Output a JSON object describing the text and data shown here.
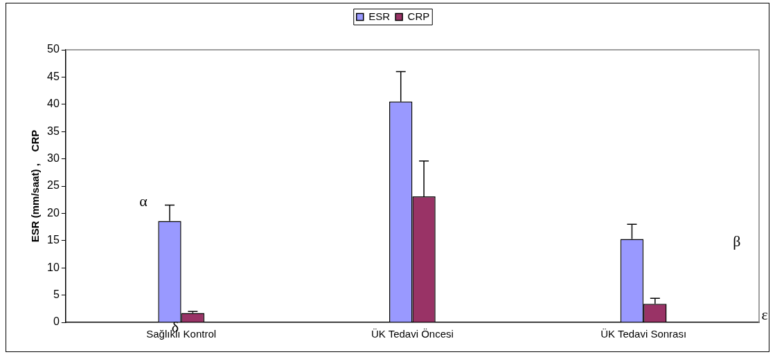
{
  "chart_data": {
    "type": "bar",
    "ylabel": "ESR (mm/saat) ,    CRP",
    "categories": [
      "Sağlıklı Kontrol",
      "ÜK Tedavi Öncesi",
      "ÜK Tedavi Sonrası"
    ],
    "series": [
      {
        "name": "ESR",
        "color": "#9999ff",
        "values": [
          18.6,
          40.5,
          15.3
        ],
        "errors": [
          [
            18.6,
            21.5
          ],
          [
            40.5,
            46.0
          ],
          [
            15.3,
            18.0
          ]
        ]
      },
      {
        "name": "CRP",
        "color": "#993366",
        "values": [
          1.7,
          23.1,
          3.4
        ],
        "errors": [
          [
            1.7,
            2.0
          ],
          [
            23.1,
            29.6
          ],
          [
            3.4,
            4.4
          ]
        ]
      }
    ],
    "ylim": [
      0,
      50
    ],
    "yticks": [
      0,
      5,
      10,
      15,
      20,
      25,
      30,
      35,
      40,
      45,
      50
    ],
    "grid": false,
    "legend": "top",
    "annotations": [
      "α",
      "δ",
      "β",
      "ε"
    ]
  }
}
